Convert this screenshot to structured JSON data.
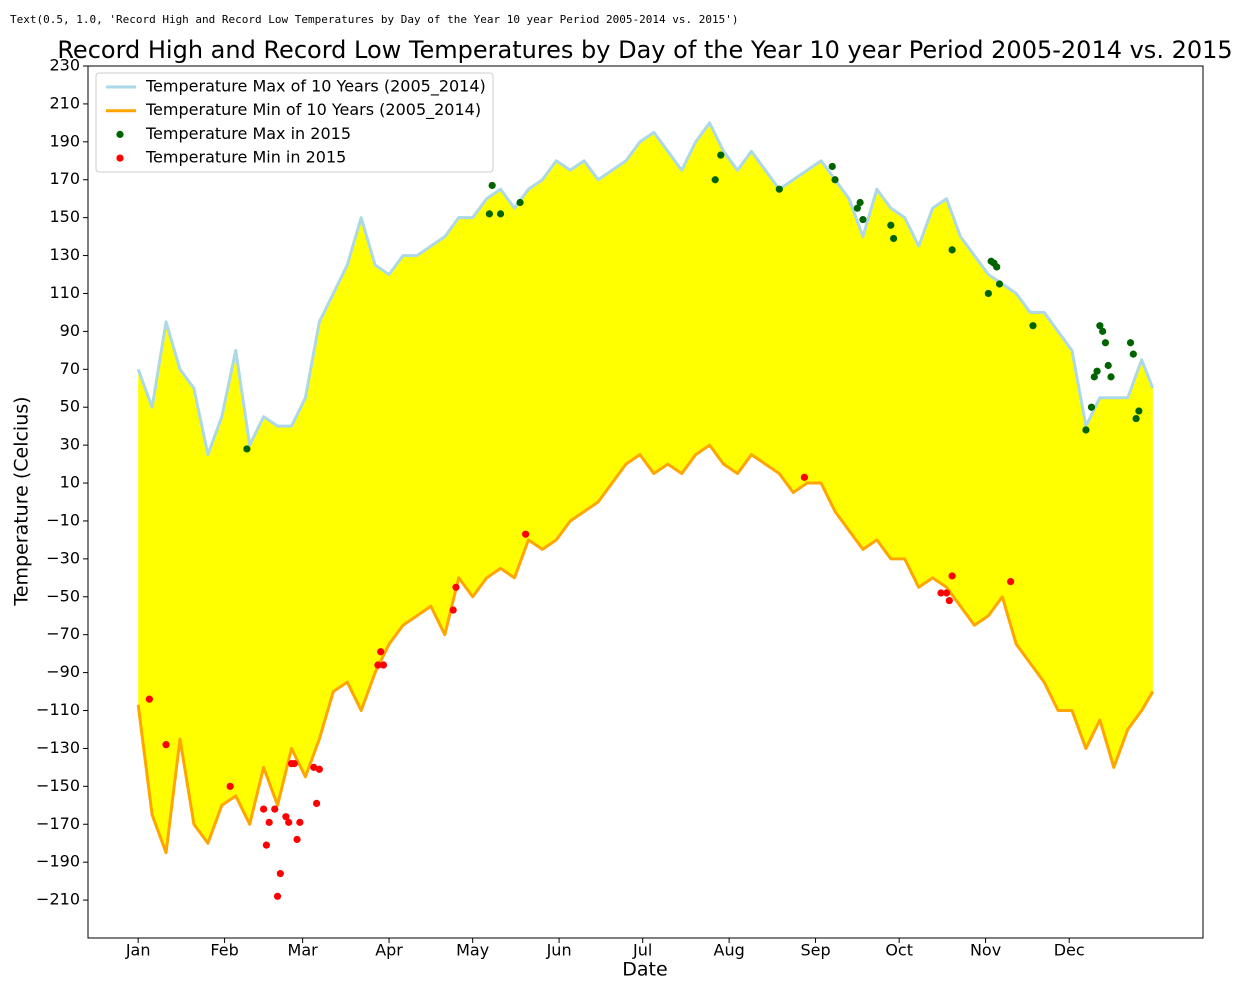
{
  "output_text": "Text(0.5, 1.0, 'Record High and Record Low Temperatures by Day of the Year 10 year Period 2005-2014 vs. 2015')",
  "chart_data": {
    "type": "line",
    "title": "Record High and Record Low Temperatures by Day of the Year 10 year Period 2005-2014 vs. 2015",
    "xlabel": "Date",
    "ylabel": "Temperature (Celcius)",
    "fill_between_color": "#ffff00",
    "legend": "upper left",
    "xlim": [
      -18,
      382
    ],
    "xticks": [
      {
        "value": 0,
        "label": "Jan"
      },
      {
        "value": 31,
        "label": "Feb"
      },
      {
        "value": 59,
        "label": "Mar"
      },
      {
        "value": 90,
        "label": "Apr"
      },
      {
        "value": 120,
        "label": "May"
      },
      {
        "value": 151,
        "label": "Jun"
      },
      {
        "value": 181,
        "label": "Jul"
      },
      {
        "value": 212,
        "label": "Aug"
      },
      {
        "value": 243,
        "label": "Sep"
      },
      {
        "value": 273,
        "label": "Oct"
      },
      {
        "value": 304,
        "label": "Nov"
      },
      {
        "value": 334,
        "label": "Dec"
      }
    ],
    "ylim": [
      -230,
      230
    ],
    "yticks": [
      {
        "value": -210,
        "label": "−210"
      },
      {
        "value": -190,
        "label": "−190"
      },
      {
        "value": -170,
        "label": "−170"
      },
      {
        "value": -150,
        "label": "−150"
      },
      {
        "value": -130,
        "label": "−130"
      },
      {
        "value": -110,
        "label": "−110"
      },
      {
        "value": -90,
        "label": "−90"
      },
      {
        "value": -70,
        "label": "−70"
      },
      {
        "value": -50,
        "label": "−50"
      },
      {
        "value": -30,
        "label": "−30"
      },
      {
        "value": -10,
        "label": "−10"
      },
      10,
      30,
      50,
      70,
      90,
      110,
      130,
      150,
      170,
      190,
      210,
      230
    ],
    "x": [
      0,
      5,
      10,
      15,
      20,
      25,
      30,
      35,
      40,
      45,
      50,
      55,
      60,
      65,
      70,
      75,
      80,
      85,
      90,
      95,
      100,
      105,
      110,
      115,
      120,
      125,
      130,
      135,
      140,
      145,
      150,
      155,
      160,
      165,
      170,
      175,
      180,
      185,
      190,
      195,
      200,
      205,
      210,
      215,
      220,
      225,
      230,
      235,
      240,
      245,
      250,
      255,
      260,
      265,
      270,
      275,
      280,
      285,
      290,
      295,
      300,
      305,
      310,
      315,
      320,
      325,
      330,
      335,
      340,
      345,
      350,
      355,
      360,
      364
    ],
    "series": [
      {
        "name": "Temperature Max of 10 Years (2005_2014)",
        "type": "line",
        "color": "#add8e6",
        "values": [
          70,
          50,
          95,
          70,
          60,
          25,
          45,
          80,
          30,
          45,
          40,
          40,
          55,
          95,
          110,
          125,
          150,
          125,
          120,
          130,
          130,
          135,
          140,
          150,
          150,
          160,
          165,
          155,
          165,
          170,
          180,
          175,
          180,
          170,
          175,
          180,
          190,
          195,
          185,
          175,
          190,
          200,
          185,
          175,
          185,
          175,
          165,
          170,
          175,
          180,
          170,
          160,
          140,
          165,
          155,
          150,
          135,
          155,
          160,
          140,
          130,
          120,
          115,
          110,
          100,
          100,
          90,
          80,
          40,
          55,
          55,
          55,
          75,
          60
        ]
      },
      {
        "name": "Temperature Min of 10 Years (2005_2014)",
        "type": "line",
        "color": "#ffa500",
        "values": [
          -107,
          -165,
          -185,
          -125,
          -170,
          -180,
          -160,
          -155,
          -170,
          -140,
          -160,
          -130,
          -145,
          -125,
          -100,
          -95,
          -110,
          -90,
          -75,
          -65,
          -60,
          -55,
          -70,
          -40,
          -50,
          -40,
          -35,
          -40,
          -20,
          -25,
          -20,
          -10,
          -5,
          0,
          10,
          20,
          25,
          15,
          20,
          15,
          25,
          30,
          20,
          15,
          25,
          20,
          15,
          5,
          10,
          10,
          -5,
          -15,
          -25,
          -20,
          -30,
          -30,
          -45,
          -40,
          -45,
          -55,
          -65,
          -60,
          -50,
          -75,
          -85,
          -95,
          -110,
          -110,
          -130,
          -115,
          -140,
          -120,
          -110,
          -100
        ]
      },
      {
        "name": "Temperature Max in 2015",
        "type": "scatter",
        "color": "#006400",
        "x": [
          39,
          126,
          127,
          130,
          137,
          207,
          209,
          230,
          249,
          250,
          258,
          259,
          260,
          270,
          271,
          292,
          305,
          306,
          307,
          308,
          309,
          321,
          340,
          342,
          343,
          344,
          345,
          346,
          347,
          348,
          349,
          356,
          357,
          358,
          359
        ],
        "values": [
          28,
          152,
          167,
          152,
          158,
          170,
          183,
          165,
          177,
          170,
          155,
          158,
          149,
          146,
          139,
          133,
          110,
          127,
          126,
          124,
          115,
          93,
          38,
          50,
          66,
          69,
          93,
          90,
          84,
          72,
          66,
          84,
          78,
          44,
          48
        ]
      },
      {
        "name": "Temperature Min in 2015",
        "type": "scatter",
        "color": "#ff0000",
        "x": [
          4,
          10,
          33,
          45,
          46,
          47,
          49,
          50,
          51,
          53,
          54,
          55,
          56,
          57,
          58,
          63,
          64,
          65,
          86,
          87,
          88,
          113,
          114,
          139,
          239,
          288,
          290,
          291,
          292,
          313
        ],
        "values": [
          -104,
          -128,
          -150,
          -162,
          -181,
          -169,
          -162,
          -208,
          -196,
          -166,
          -169,
          -138,
          -138,
          -178,
          -169,
          -140,
          -159,
          -141,
          -86,
          -79,
          -86,
          -57,
          -45,
          -17,
          13,
          -48,
          -48,
          -52,
          -39,
          -42
        ]
      }
    ]
  }
}
